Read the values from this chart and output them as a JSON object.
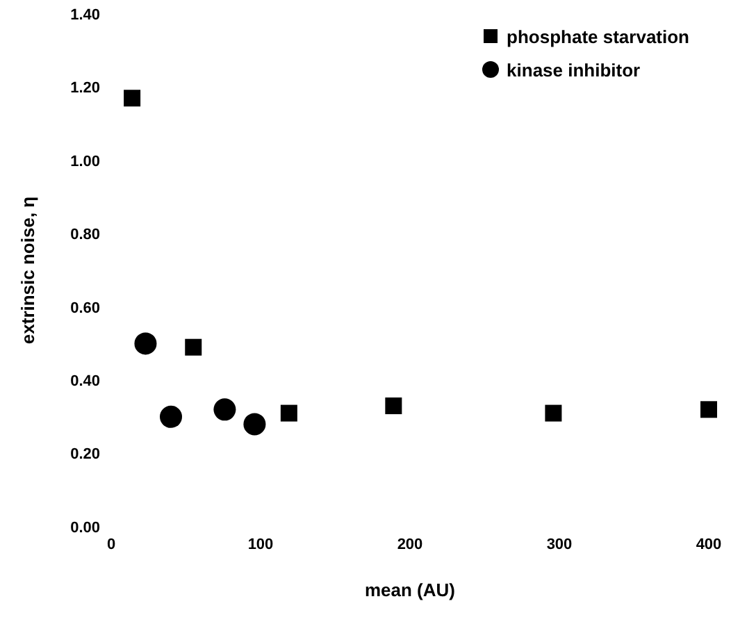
{
  "chart_data": {
    "type": "scatter",
    "xlabel": "mean (AU)",
    "ylabel": "extrinsic noise, η",
    "xlim": [
      0,
      400
    ],
    "xticks": [
      0,
      100,
      200,
      300,
      400
    ],
    "ylim": [
      0,
      1.4
    ],
    "yticks": [
      {
        "value": 0,
        "label": "0.00"
      },
      {
        "value": 0.2,
        "label": "0.20"
      },
      {
        "value": 0.4,
        "label": "0.40"
      },
      {
        "value": 0.6,
        "label": "0.60"
      },
      {
        "value": 0.8,
        "label": "0.80"
      },
      {
        "value": 1,
        "label": "1.00"
      },
      {
        "value": 1.2,
        "label": "1.20"
      },
      {
        "value": 1.4,
        "label": "1.40"
      }
    ],
    "grid": false,
    "legend": "top right",
    "series": [
      {
        "name": "phosphate starvation",
        "color": "#000000",
        "marker": "square",
        "x": [
          14,
          55,
          119,
          189,
          296,
          400
        ],
        "values": [
          1.17,
          0.49,
          0.31,
          0.33,
          0.31,
          0.32
        ]
      },
      {
        "name": "kinase inhibitor",
        "color": "#000000",
        "marker": "circle",
        "x": [
          23,
          40,
          76,
          96
        ],
        "values": [
          0.5,
          0.3,
          0.32,
          0.28
        ]
      }
    ]
  }
}
